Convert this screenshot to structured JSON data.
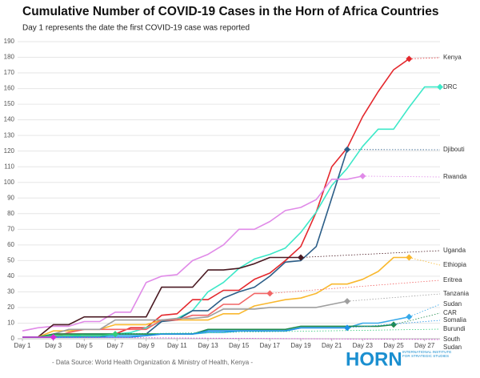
{
  "chart_data": {
    "type": "line",
    "title": "Cumulative Number of COVID-19 Cases in the Horn of Africa Countries",
    "subtitle": "Day 1 represents the date the first COVID-19 case was reported",
    "source": "- Data Source: World Health Organization & Ministry of Health, Kenya -",
    "logo_text": "HORN",
    "logo_subtext": "INTERNATIONAL INSTITUTE FOR STRATEGIC STUDIES",
    "x": [
      1,
      2,
      3,
      4,
      5,
      6,
      7,
      8,
      9,
      10,
      11,
      12,
      13,
      14,
      15,
      16,
      17,
      18,
      19,
      20,
      21,
      22,
      23,
      24,
      25,
      26,
      27,
      28
    ],
    "xlim": [
      1,
      28
    ],
    "xticks": [
      {
        "value": 1,
        "label": "Day 1"
      },
      {
        "value": 3,
        "label": "Day 3"
      },
      {
        "value": 5,
        "label": "Day 5"
      },
      {
        "value": 7,
        "label": "Day 7"
      },
      {
        "value": 9,
        "label": "Day 9"
      },
      {
        "value": 11,
        "label": "Day 11"
      },
      {
        "value": 13,
        "label": "Day 13"
      },
      {
        "value": 15,
        "label": "Day 15"
      },
      {
        "value": 17,
        "label": "Day 17"
      },
      {
        "value": 19,
        "label": "Day 19"
      },
      {
        "value": 21,
        "label": "Day 21"
      },
      {
        "value": 23,
        "label": "Day 23"
      },
      {
        "value": 25,
        "label": "Day 25"
      },
      {
        "value": 27,
        "label": "Day 27"
      }
    ],
    "ylim": [
      0,
      190
    ],
    "yticks": [
      0,
      10,
      20,
      30,
      40,
      50,
      60,
      70,
      80,
      90,
      100,
      110,
      120,
      130,
      140,
      150,
      160,
      170,
      180,
      190
    ],
    "grid": true,
    "series": [
      {
        "name": "Kenya",
        "color": "#e4282d",
        "values": [
          1,
          1,
          3,
          3,
          3,
          3,
          3,
          7,
          7,
          15,
          16,
          25,
          25,
          31,
          31,
          38,
          42,
          50,
          59,
          81,
          110,
          122,
          142,
          158,
          172,
          179,
          null,
          null
        ]
      },
      {
        "name": "DRC",
        "color": "#3de8c8",
        "values": [
          1,
          1,
          2,
          2,
          3,
          3,
          3,
          4,
          7,
          11,
          13,
          18,
          30,
          36,
          45,
          51,
          54,
          58,
          68,
          81,
          98,
          109,
          123,
          134,
          134,
          148,
          161,
          161
        ]
      },
      {
        "name": "Djibouti",
        "color": "#2b5d87",
        "values": [
          1,
          1,
          1,
          1,
          1,
          1,
          3,
          3,
          3,
          11,
          12,
          18,
          18,
          26,
          30,
          33,
          40,
          49,
          50,
          59,
          90,
          121,
          null,
          null,
          null,
          null,
          null,
          null
        ]
      },
      {
        "name": "Rwanda",
        "color": "#e08ae8",
        "values": [
          5,
          7,
          8,
          8,
          11,
          11,
          17,
          17,
          36,
          40,
          41,
          50,
          54,
          60,
          70,
          70,
          75,
          82,
          84,
          89,
          102,
          102,
          104,
          null,
          null,
          null,
          null,
          null
        ]
      },
      {
        "name": "Uganda",
        "color": "#4a1a22",
        "values": [
          1,
          1,
          9,
          9,
          14,
          14,
          14,
          14,
          14,
          33,
          33,
          33,
          44,
          44,
          45,
          48,
          52,
          52,
          52,
          null,
          null,
          null,
          null,
          null,
          null,
          null,
          null,
          null
        ]
      },
      {
        "name": "Ethiopia",
        "color": "#f9b82e",
        "values": [
          1,
          1,
          5,
          5,
          6,
          6,
          9,
          9,
          9,
          12,
          12,
          12,
          12,
          16,
          16,
          21,
          23,
          25,
          26,
          29,
          35,
          35,
          38,
          43,
          52,
          52,
          null,
          null
        ]
      },
      {
        "name": "Eritrea",
        "color": "#f26565",
        "values": [
          1,
          1,
          1,
          4,
          6,
          6,
          6,
          6,
          6,
          12,
          12,
          15,
          15,
          22,
          22,
          29,
          29,
          null,
          null,
          null,
          null,
          null,
          null,
          null,
          null,
          null,
          null,
          null
        ]
      },
      {
        "name": "Tanzania",
        "color": "#9e9e9e",
        "values": [
          1,
          1,
          3,
          6,
          6,
          6,
          12,
          12,
          12,
          12,
          13,
          13,
          14,
          19,
          19,
          19,
          20,
          20,
          20,
          20,
          22,
          24,
          null,
          null,
          null,
          null,
          null,
          null
        ]
      },
      {
        "name": "Sudan",
        "color": "#37a9ea",
        "values": [
          1,
          1,
          1,
          1,
          2,
          2,
          2,
          2,
          2,
          3,
          3,
          3,
          4,
          4,
          5,
          5,
          5,
          5,
          7,
          7,
          7,
          7,
          10,
          10,
          12,
          14,
          null,
          null
        ]
      },
      {
        "name": "CAR",
        "color": "#1f8a4c",
        "values": [
          1,
          1,
          3,
          3,
          3,
          3,
          3,
          3,
          3,
          3,
          3,
          3,
          6,
          6,
          6,
          6,
          6,
          6,
          8,
          8,
          8,
          8,
          8,
          8,
          9,
          null,
          null,
          null
        ]
      },
      {
        "name": "Somalia",
        "color": "#1e8fe6",
        "values": [
          1,
          1,
          1,
          1,
          1,
          1,
          1,
          1,
          2,
          3,
          3,
          3,
          5,
          5,
          5,
          5,
          5,
          5,
          7,
          7,
          7,
          7,
          null,
          null,
          null,
          null,
          null,
          null
        ]
      },
      {
        "name": "Burundi",
        "color": "#33cc7a",
        "values": [
          1,
          1,
          2,
          2,
          2,
          2,
          3,
          null,
          null,
          null,
          null,
          null,
          null,
          null,
          null,
          null,
          null,
          null,
          null,
          null,
          null,
          null,
          null,
          null,
          null,
          null,
          null,
          null
        ]
      },
      {
        "name": "South Sudan",
        "color": "#d62ad6",
        "values": [
          1,
          1,
          1,
          null,
          null,
          null,
          null,
          null,
          null,
          null,
          null,
          null,
          null,
          null,
          null,
          null,
          null,
          null,
          null,
          null,
          null,
          null,
          null,
          null,
          null,
          null,
          null,
          null
        ]
      }
    ]
  }
}
